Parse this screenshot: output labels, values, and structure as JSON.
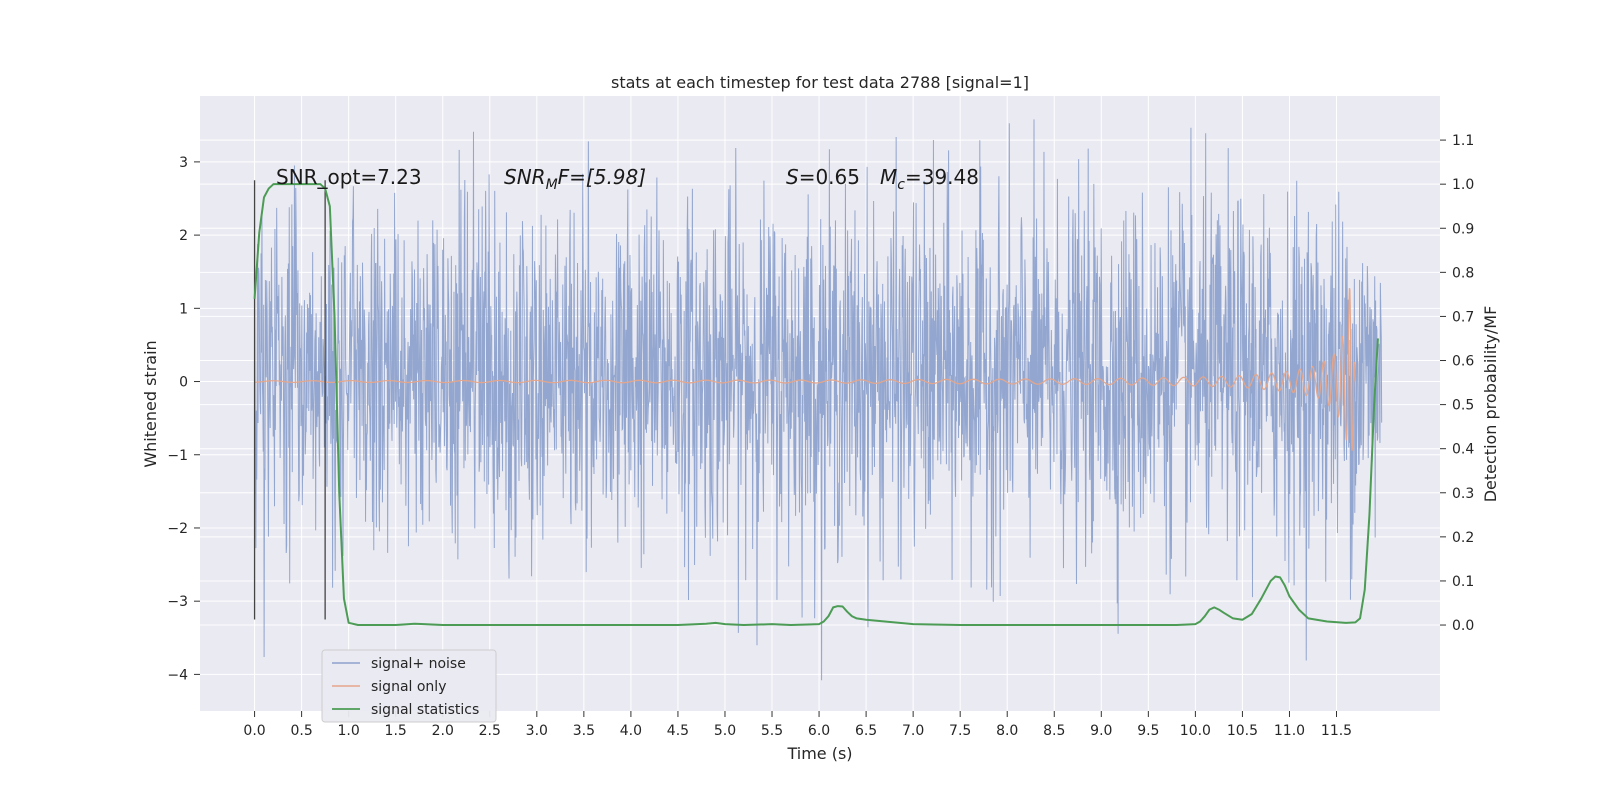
{
  "chart_data": {
    "type": "line",
    "title": "stats at each timestep for test data 2788 [signal=1]",
    "xlabel": "Time (s)",
    "ylabel_left": "Whitened strain",
    "ylabel_right": "Detection probability/MF",
    "xlim": [
      -0.58,
      12.6
    ],
    "ylim_left": [
      -4.5,
      3.9
    ],
    "ylim_right": [
      -0.195,
      1.2
    ],
    "x_ticks": [
      0.0,
      0.5,
      1.0,
      1.5,
      2.0,
      2.5,
      3.0,
      3.5,
      4.0,
      4.5,
      5.0,
      5.5,
      6.0,
      6.5,
      7.0,
      7.5,
      8.0,
      8.5,
      9.0,
      9.5,
      10.0,
      10.5,
      11.0,
      11.5
    ],
    "x_tick_labels": [
      "0.0",
      "0.5",
      "1.0",
      "1.5",
      "2.0",
      "2.5",
      "3.0",
      "3.5",
      "4.0",
      "4.5",
      "5.0",
      "5.5",
      "6.0",
      "6.5",
      "7.0",
      "7.5",
      "8.0",
      "8.5",
      "9.0",
      "9.5",
      "10.0",
      "10.5",
      "11.0",
      "11.5"
    ],
    "y_left_ticks": [
      3,
      2,
      1,
      0,
      -1,
      -2,
      -3,
      -4
    ],
    "y_left_tick_labels": [
      "3",
      "2",
      "1",
      "0",
      "−1",
      "−2",
      "−3",
      "−4"
    ],
    "y_right_ticks": [
      1.1,
      1.0,
      0.9,
      0.8,
      0.7,
      0.6,
      0.5,
      0.4,
      0.3,
      0.2,
      0.1,
      0.0
    ],
    "y_right_tick_labels": [
      "1.1",
      "1.0",
      "0.9",
      "0.8",
      "0.7",
      "0.6",
      "0.5",
      "0.4",
      "0.3",
      "0.2",
      "0.1",
      "0.0"
    ],
    "grid": true,
    "legend_position": "bottom-left",
    "annotations": {
      "snr_opt": "SNR_opt=7.23",
      "snr_mf_name": "SNR",
      "snr_mf_sub": "M",
      "snr_mf_rest": "F=[5.98]",
      "s_name": "S",
      "s_value": "=0.65",
      "mc_name": "M",
      "mc_sub": "c",
      "mc_value": "=39.48"
    },
    "series": [
      {
        "name": "signal+ noise",
        "color": "#8ea2cc",
        "axis": "left",
        "kind": "noise",
        "x_range": [
          0.0,
          11.98
        ],
        "typical_envelope": [
          -1.8,
          2.0
        ],
        "y_min": -4.08,
        "y_max": 3.58
      },
      {
        "name": "signal only",
        "color": "#e6a58a",
        "axis": "left",
        "kind": "chirp",
        "x_range": [
          0.0,
          11.7
        ],
        "amplitude_points": [
          [
            0.0,
            0.01
          ],
          [
            6.0,
            0.02
          ],
          [
            9.0,
            0.04
          ],
          [
            10.0,
            0.06
          ],
          [
            10.5,
            0.08
          ],
          [
            11.0,
            0.14
          ],
          [
            11.3,
            0.22
          ],
          [
            11.5,
            0.4
          ],
          [
            11.6,
            0.75
          ],
          [
            11.65,
            1.45
          ],
          [
            11.7,
            0.0
          ]
        ]
      },
      {
        "name": "signal statistics",
        "color": "#4c9c55",
        "axis": "right",
        "kind": "line",
        "x": [
          0.0,
          0.05,
          0.1,
          0.15,
          0.2,
          0.3,
          0.4,
          0.5,
          0.6,
          0.65,
          0.7,
          0.75,
          0.8,
          0.85,
          0.9,
          0.95,
          1.0,
          1.1,
          1.3,
          1.5,
          1.7,
          1.8,
          2.0,
          2.5,
          3.0,
          3.5,
          4.0,
          4.5,
          4.8,
          4.9,
          5.0,
          5.2,
          5.5,
          5.7,
          6.0,
          6.05,
          6.1,
          6.15,
          6.2,
          6.25,
          6.3,
          6.35,
          6.4,
          6.5,
          6.7,
          7.0,
          7.5,
          8.0,
          8.5,
          9.0,
          9.5,
          9.8,
          10.0,
          10.05,
          10.1,
          10.15,
          10.2,
          10.25,
          10.3,
          10.4,
          10.5,
          10.6,
          10.7,
          10.8,
          10.85,
          10.9,
          10.95,
          11.0,
          11.1,
          11.2,
          11.4,
          11.6,
          11.7,
          11.75,
          11.8,
          11.85,
          11.9,
          11.94
        ],
        "y": [
          0.74,
          0.89,
          0.97,
          0.99,
          1.0,
          1.0,
          1.0,
          1.0,
          1.0,
          1.0,
          1.0,
          0.99,
          0.95,
          0.7,
          0.3,
          0.06,
          0.005,
          0.0,
          0.0,
          0.0,
          0.003,
          0.002,
          0.0,
          0.0,
          0.0,
          0.0,
          0.0,
          0.0,
          0.003,
          0.005,
          0.002,
          0.0,
          0.002,
          0.0,
          0.002,
          0.008,
          0.02,
          0.04,
          0.043,
          0.042,
          0.03,
          0.02,
          0.015,
          0.012,
          0.008,
          0.002,
          0.0,
          0.0,
          0.0,
          0.0,
          0.0,
          0.0,
          0.002,
          0.008,
          0.02,
          0.035,
          0.04,
          0.035,
          0.028,
          0.015,
          0.012,
          0.025,
          0.06,
          0.1,
          0.11,
          0.108,
          0.09,
          0.065,
          0.035,
          0.015,
          0.008,
          0.005,
          0.006,
          0.015,
          0.08,
          0.25,
          0.5,
          0.65
        ]
      }
    ],
    "vertical_markers": {
      "color": "#444444",
      "x": [
        0.0,
        0.75
      ],
      "y_range_left": [
        -3.25,
        2.75
      ]
    }
  }
}
